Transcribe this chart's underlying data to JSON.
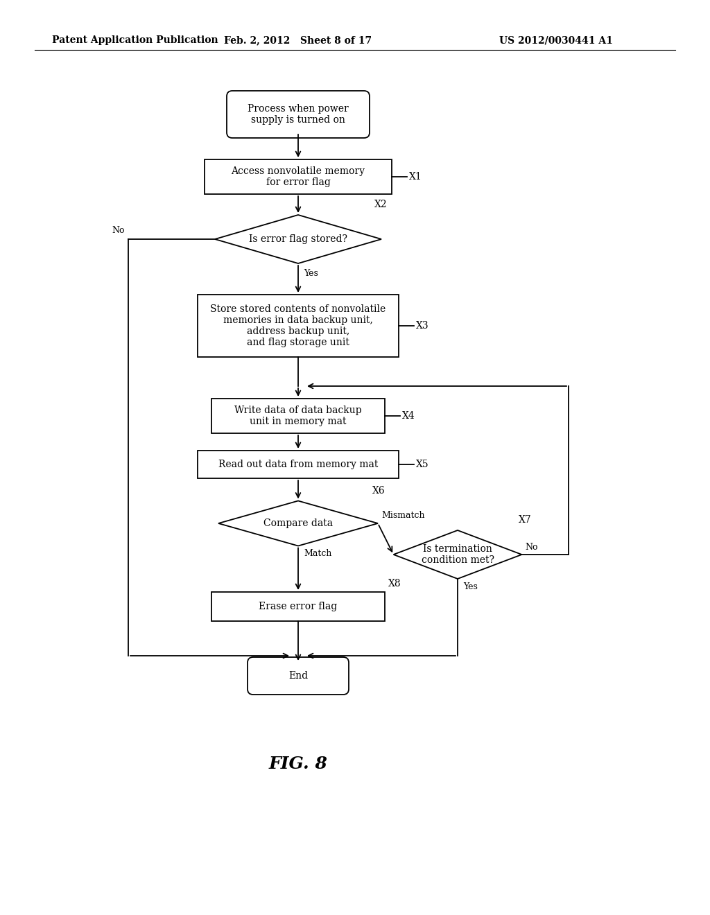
{
  "header_left": "Patent Application Publication",
  "header_mid": "Feb. 2, 2012   Sheet 8 of 17",
  "header_right": "US 2012/0030441 A1",
  "figure_label": "FIG. 8",
  "bg_color": "#ffffff",
  "line_color": "#000000",
  "start_text": "Process when power\nsupply is turned on",
  "x1_text": "Access nonvolatile memory\nfor error flag",
  "x2_text": "Is error flag stored?",
  "x3_text": "Store stored contents of nonvolatile\nmemories in data backup unit,\naddress backup unit,\nand flag storage unit",
  "x4_text": "Write data of data backup\nunit in memory mat",
  "x5_text": "Read out data from memory mat",
  "x6_text": "Compare data",
  "x7_text": "Is termination\ncondition met?",
  "x8_text": "Erase error flag",
  "end_text": "End",
  "tag_x1": "X1",
  "tag_x2": "X2",
  "tag_x3": "X3",
  "tag_x4": "X4",
  "tag_x5": "X5",
  "tag_x6": "X6",
  "tag_x7": "X7",
  "tag_x8": "X8",
  "label_no1": "No",
  "label_yes1": "Yes",
  "label_yes2": "Match",
  "label_no2": "No",
  "label_mismatch": "Mismatch",
  "label_yes3": "Yes"
}
